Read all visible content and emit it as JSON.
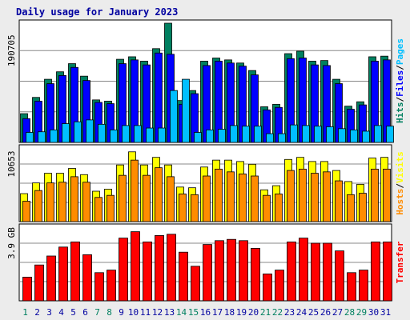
{
  "title": "Daily usage for January 2023",
  "colors": {
    "background": "#ececec",
    "panel": "#ffffff",
    "frame": "#000000",
    "title": "#0000a0",
    "visits": "#008060",
    "pages": "#0000ff",
    "hits": "#00bfff",
    "visitors": "#ffff00",
    "sites": "#ff8c00",
    "kbytes": "#ff0000",
    "weekend_day": "#008060",
    "weekday": "#0000a0"
  },
  "chart_data": [
    {
      "type": "bar",
      "panel": "hits-files-pages",
      "ytick_label": "190705",
      "ylim": [
        0,
        190705
      ],
      "legend": [
        {
          "label": "Hits",
          "color": "#008060"
        },
        {
          "label": "/",
          "color": "#000000"
        },
        {
          "label": "Files",
          "color": "#0000ff"
        },
        {
          "label": "/",
          "color": "#000000"
        },
        {
          "label": "Pages",
          "color": "#00bfff"
        }
      ],
      "series": [
        {
          "name": "Hits",
          "color": "#008060",
          "values": [
            46000,
            72000,
            101000,
            113000,
            126000,
            106000,
            68000,
            66000,
            133000,
            137000,
            130000,
            150000,
            190705,
            67000,
            83000,
            130000,
            135000,
            132000,
            127000,
            115000,
            57000,
            61000,
            142000,
            146000,
            130000,
            131000,
            101000,
            58000,
            65000,
            137000,
            138000
          ]
        },
        {
          "name": "Files",
          "color": "#0000ff",
          "values": [
            38000,
            66000,
            94000,
            107000,
            120000,
            99000,
            64000,
            62000,
            126000,
            132000,
            124000,
            143000,
            141000,
            61000,
            78000,
            123000,
            130000,
            127000,
            122000,
            108000,
            52000,
            56000,
            134000,
            135000,
            124000,
            123000,
            94000,
            53000,
            60000,
            130000,
            132000
          ]
        },
        {
          "name": "Pages",
          "color": "#00bfff",
          "values": [
            16000,
            17000,
            20000,
            30000,
            33000,
            36000,
            29000,
            20000,
            27000,
            27000,
            23000,
            23000,
            83000,
            101000,
            16000,
            20000,
            21000,
            27000,
            26000,
            26000,
            14000,
            14000,
            28000,
            27000,
            26000,
            25000,
            22000,
            20000,
            18000,
            27000,
            26000
          ]
        }
      ]
    },
    {
      "type": "bar",
      "panel": "hosts-visits",
      "ytick_label": "10653",
      "ylim": [
        0,
        10653
      ],
      "legend": [
        {
          "label": "Hosts",
          "color": "#ff8c00"
        },
        {
          "label": "/",
          "color": "#000000"
        },
        {
          "label": "Visits",
          "color": "#ffff00"
        }
      ],
      "series": [
        {
          "name": "Visits",
          "color": "#ffff00",
          "values": [
            4050,
            5600,
            7000,
            7000,
            7700,
            6800,
            4400,
            4700,
            8200,
            10100,
            8200,
            9300,
            8200,
            5000,
            4900,
            7900,
            8900,
            8900,
            8700,
            8300,
            4600,
            5200,
            9000,
            9300,
            8700,
            8700,
            7400,
            5800,
            5400,
            9200,
            9300
          ]
        },
        {
          "name": "Hosts",
          "color": "#ff8c00",
          "values": [
            2950,
            4500,
            5600,
            5700,
            6500,
            5700,
            3500,
            3800,
            6700,
            8900,
            6700,
            7800,
            6500,
            4000,
            3900,
            6600,
            7600,
            7200,
            6900,
            6600,
            3800,
            4000,
            7400,
            7600,
            7000,
            7200,
            5900,
            3900,
            4100,
            7600,
            7600
          ]
        }
      ]
    },
    {
      "type": "bar",
      "panel": "transfer",
      "ytick_label": "3.9 GB",
      "ylim": [
        0,
        5.75
      ],
      "legend": [
        {
          "label": "Transfer",
          "color": "#ff0000"
        }
      ],
      "series": [
        {
          "name": "Transfer",
          "color": "#ff0000",
          "values": [
            1.85,
            2.8,
            3.5,
            4.2,
            4.6,
            3.6,
            2.2,
            2.4,
            4.9,
            5.4,
            4.6,
            5.1,
            5.2,
            3.8,
            2.7,
            4.4,
            4.7,
            4.8,
            4.7,
            4.1,
            2.1,
            2.4,
            4.6,
            4.9,
            4.5,
            4.5,
            3.9,
            2.2,
            2.4,
            4.6,
            4.6
          ]
        }
      ]
    }
  ],
  "x_days": [
    {
      "label": "1",
      "weekend": true
    },
    {
      "label": "2",
      "weekend": false
    },
    {
      "label": "3",
      "weekend": false
    },
    {
      "label": "4",
      "weekend": false
    },
    {
      "label": "5",
      "weekend": false
    },
    {
      "label": "6",
      "weekend": false
    },
    {
      "label": "7",
      "weekend": true
    },
    {
      "label": "8",
      "weekend": true
    },
    {
      "label": "9",
      "weekend": false
    },
    {
      "label": "10",
      "weekend": false
    },
    {
      "label": "11",
      "weekend": false
    },
    {
      "label": "12",
      "weekend": false
    },
    {
      "label": "13",
      "weekend": false
    },
    {
      "label": "14",
      "weekend": true
    },
    {
      "label": "15",
      "weekend": true
    },
    {
      "label": "16",
      "weekend": false
    },
    {
      "label": "17",
      "weekend": false
    },
    {
      "label": "18",
      "weekend": false
    },
    {
      "label": "19",
      "weekend": false
    },
    {
      "label": "20",
      "weekend": false
    },
    {
      "label": "21",
      "weekend": true
    },
    {
      "label": "22",
      "weekend": true
    },
    {
      "label": "23",
      "weekend": false
    },
    {
      "label": "24",
      "weekend": false
    },
    {
      "label": "25",
      "weekend": false
    },
    {
      "label": "26",
      "weekend": false
    },
    {
      "label": "27",
      "weekend": false
    },
    {
      "label": "28",
      "weekend": true
    },
    {
      "label": "29",
      "weekend": true
    },
    {
      "label": "30",
      "weekend": false
    },
    {
      "label": "31",
      "weekend": false
    }
  ]
}
